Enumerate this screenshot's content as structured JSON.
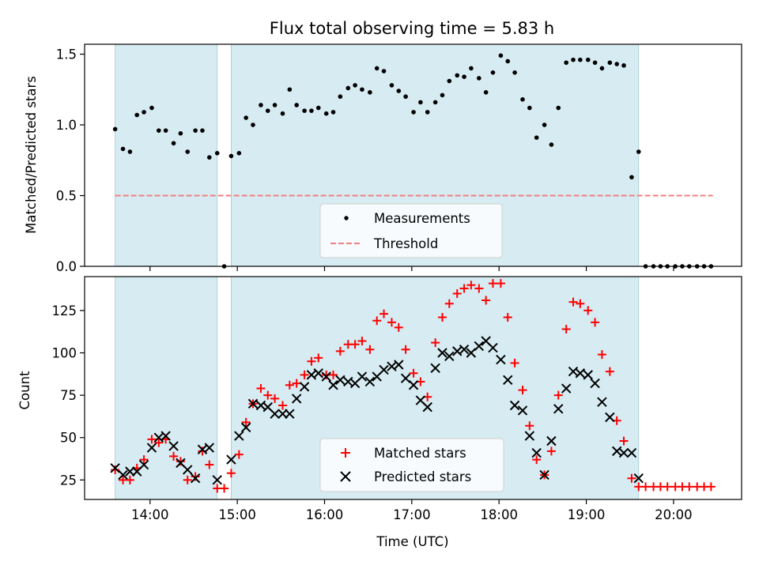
{
  "title": "Flux total observing time = 5.83 h",
  "chart_data": [
    {
      "type": "scatter",
      "panel": "top",
      "ylabel": "Matched/Predicted stars",
      "ylim": [
        0,
        1.57
      ],
      "yticks": [
        0,
        0.5,
        1.0,
        1.5
      ],
      "ytick_labels": [
        "0.0",
        "0.5",
        "1.0",
        "1.5"
      ],
      "xlim": [
        13.25,
        20.78
      ],
      "shaded_intervals": [
        [
          13.6,
          14.77
        ],
        [
          14.93,
          19.6
        ]
      ],
      "threshold": 0.5,
      "threshold_x": [
        13.6,
        20.45
      ],
      "series": [
        {
          "name": "Measurements",
          "x": [
            13.6,
            13.69,
            13.77,
            13.85,
            13.93,
            14.02,
            14.1,
            14.18,
            14.27,
            14.35,
            14.43,
            14.52,
            14.6,
            14.68,
            14.77,
            14.85,
            14.93,
            15.02,
            15.1,
            15.18,
            15.27,
            15.35,
            15.43,
            15.52,
            15.6,
            15.68,
            15.77,
            15.85,
            15.93,
            16.02,
            16.1,
            16.18,
            16.27,
            16.35,
            16.43,
            16.52,
            16.6,
            16.68,
            16.77,
            16.85,
            16.93,
            17.02,
            17.1,
            17.18,
            17.27,
            17.35,
            17.43,
            17.52,
            17.6,
            17.68,
            17.77,
            17.85,
            17.93,
            18.02,
            18.1,
            18.18,
            18.27,
            18.35,
            18.43,
            18.52,
            18.6,
            18.68,
            18.77,
            18.85,
            18.93,
            19.02,
            19.1,
            19.18,
            19.27,
            19.35,
            19.43,
            19.52,
            19.6,
            19.68,
            19.77,
            19.85,
            19.93,
            20.02,
            20.1,
            20.18,
            20.27,
            20.35,
            20.43
          ],
          "y": [
            0.97,
            0.83,
            0.81,
            1.07,
            1.09,
            1.12,
            0.96,
            0.96,
            0.87,
            0.94,
            0.81,
            0.96,
            0.96,
            0.77,
            0.8,
            0.0,
            0.78,
            0.8,
            1.05,
            1.0,
            1.14,
            1.1,
            1.14,
            1.08,
            1.25,
            1.14,
            1.1,
            1.1,
            1.12,
            1.08,
            1.09,
            1.2,
            1.26,
            1.28,
            1.25,
            1.23,
            1.4,
            1.38,
            1.28,
            1.24,
            1.2,
            1.09,
            1.16,
            1.09,
            1.16,
            1.21,
            1.31,
            1.35,
            1.34,
            1.4,
            1.33,
            1.23,
            1.37,
            1.49,
            1.45,
            1.37,
            1.18,
            1.12,
            0.91,
            1.0,
            0.86,
            1.12,
            1.44,
            1.46,
            1.46,
            1.46,
            1.44,
            1.4,
            1.44,
            1.43,
            1.42,
            0.63,
            0.81,
            0.0,
            0.0,
            0.0,
            0.0,
            0.0,
            0.0,
            0.0,
            0.0,
            0.0,
            0.0
          ]
        },
        {
          "name": "Threshold"
        }
      ]
    },
    {
      "type": "scatter",
      "panel": "bottom",
      "xlabel": "Time (UTC)",
      "ylabel": "Count",
      "ylim": [
        13.5,
        145
      ],
      "yticks": [
        25,
        50,
        75,
        100,
        125
      ],
      "ytick_labels": [
        "25",
        "50",
        "75",
        "100",
        "125"
      ],
      "xlim": [
        13.25,
        20.78
      ],
      "xticks": [
        14,
        15,
        16,
        17,
        18,
        19,
        20
      ],
      "xtick_labels": [
        "14:00",
        "15:00",
        "16:00",
        "17:00",
        "18:00",
        "19:00",
        "20:00"
      ],
      "shaded_intervals": [
        [
          13.6,
          14.77
        ],
        [
          14.93,
          19.6
        ]
      ],
      "series": [
        {
          "name": "Matched stars",
          "x": [
            13.6,
            13.69,
            13.77,
            13.85,
            13.93,
            14.02,
            14.1,
            14.18,
            14.27,
            14.35,
            14.43,
            14.52,
            14.6,
            14.68,
            14.77,
            14.85,
            14.93,
            15.02,
            15.1,
            15.18,
            15.27,
            15.35,
            15.43,
            15.52,
            15.6,
            15.68,
            15.77,
            15.85,
            15.93,
            16.02,
            16.1,
            16.18,
            16.27,
            16.35,
            16.43,
            16.52,
            16.6,
            16.68,
            16.77,
            16.85,
            16.93,
            17.02,
            17.1,
            17.18,
            17.27,
            17.35,
            17.43,
            17.52,
            17.6,
            17.68,
            17.77,
            17.85,
            17.93,
            18.02,
            18.1,
            18.18,
            18.27,
            18.35,
            18.43,
            18.52,
            18.6,
            18.68,
            18.77,
            18.85,
            18.93,
            19.02,
            19.1,
            19.18,
            19.27,
            19.35,
            19.43,
            19.52,
            19.6,
            19.68,
            19.77,
            19.85,
            19.93,
            20.02,
            20.1,
            20.18,
            20.27,
            20.35,
            20.43
          ],
          "y": [
            31,
            25,
            25,
            32,
            37,
            49,
            47,
            49,
            39,
            36,
            25,
            27,
            42,
            34,
            20,
            20,
            29,
            40,
            59,
            70,
            79,
            75,
            73,
            69,
            81,
            82,
            87,
            95,
            97,
            87,
            87,
            101,
            105,
            105,
            107,
            102,
            119,
            123,
            118,
            115,
            102,
            88,
            83,
            74,
            106,
            121,
            129,
            135,
            138,
            140,
            138,
            131,
            141,
            141,
            121,
            94,
            78,
            57,
            37,
            28,
            42,
            75,
            114,
            130,
            129,
            125,
            118,
            99,
            89,
            60,
            48,
            26,
            21,
            21,
            21,
            21,
            21,
            21,
            21,
            21,
            21,
            21,
            21
          ]
        },
        {
          "name": "Predicted stars",
          "x": [
            13.6,
            13.69,
            13.77,
            13.85,
            13.93,
            14.02,
            14.1,
            14.18,
            14.27,
            14.35,
            14.43,
            14.52,
            14.6,
            14.68,
            14.77,
            14.93,
            15.02,
            15.1,
            15.18,
            15.27,
            15.35,
            15.43,
            15.52,
            15.6,
            15.68,
            15.77,
            15.85,
            15.93,
            16.02,
            16.1,
            16.18,
            16.27,
            16.35,
            16.43,
            16.52,
            16.6,
            16.68,
            16.77,
            16.85,
            16.93,
            17.02,
            17.1,
            17.18,
            17.27,
            17.35,
            17.43,
            17.52,
            17.6,
            17.68,
            17.77,
            17.85,
            17.93,
            18.02,
            18.1,
            18.18,
            18.27,
            18.35,
            18.43,
            18.52,
            18.6,
            18.68,
            18.77,
            18.85,
            18.93,
            19.02,
            19.1,
            19.18,
            19.27,
            19.35,
            19.43,
            19.52,
            19.6
          ],
          "y": [
            32,
            28,
            30,
            30,
            34,
            44,
            50,
            51,
            45,
            35,
            31,
            26,
            43,
            44,
            25,
            37,
            51,
            56,
            70,
            69,
            68,
            64,
            64,
            64,
            73,
            80,
            87,
            88,
            86,
            81,
            84,
            83,
            82,
            86,
            83,
            86,
            90,
            92,
            93,
            85,
            81,
            72,
            68,
            91,
            100,
            98,
            101,
            102,
            100,
            104,
            107,
            103,
            96,
            84,
            69,
            66,
            51,
            41,
            28,
            48,
            67,
            79,
            89,
            88,
            87,
            82,
            71,
            62,
            42,
            41,
            41,
            26
          ]
        }
      ]
    }
  ]
}
